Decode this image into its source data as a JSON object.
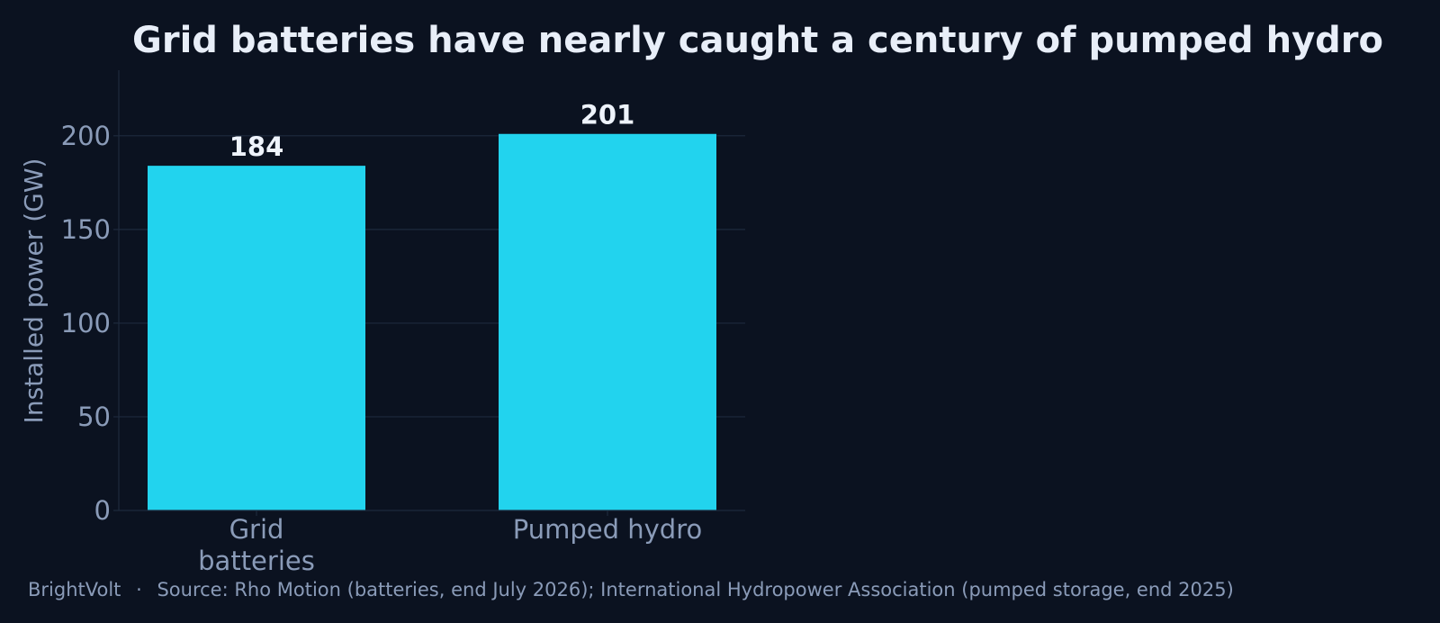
{
  "colors": {
    "background": "#0b1220",
    "bar": "#22d3ee",
    "grid": "#1e2a3d",
    "text_muted": "#8a9bb8",
    "text_bright": "#e8eef8"
  },
  "chart_data": {
    "type": "bar",
    "title": "Grid batteries have nearly caught a century of pumped hydro",
    "ylabel": "Installed power (GW)",
    "xlabel": "",
    "categories": [
      [
        "Grid",
        "batteries"
      ],
      [
        "Pumped hydro"
      ]
    ],
    "values": [
      184,
      201
    ],
    "data_labels": [
      "184",
      "201"
    ],
    "ylim": [
      0,
      235
    ],
    "yticks": [
      0,
      50,
      100,
      150,
      200
    ],
    "ytick_labels": [
      "0",
      "50",
      "100",
      "150",
      "200"
    ],
    "grid": "horizontal",
    "legend": "none"
  },
  "footer": {
    "brand": "BrightVolt",
    "separator": "·",
    "source": "Source: Rho Motion (batteries, end July 2026); International Hydropower Association (pumped storage, end 2025)"
  }
}
